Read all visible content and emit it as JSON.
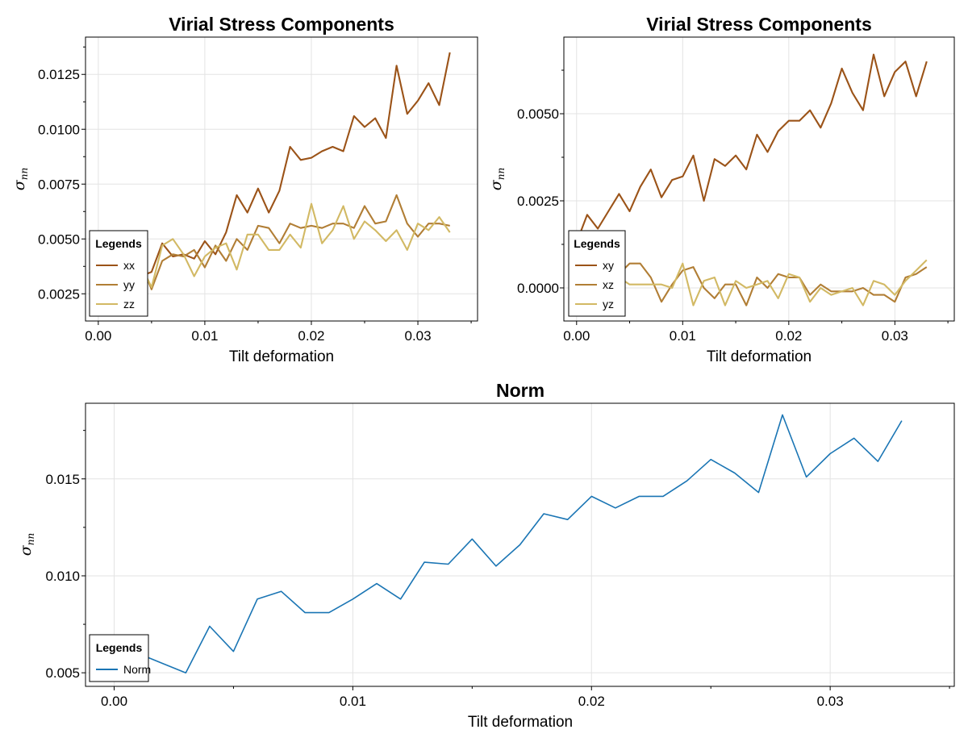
{
  "chart_data": [
    {
      "type": "line",
      "title": "Virial Stress Components",
      "xlabel": "Tilt deformation",
      "ylabel": "σ",
      "ylabel_sub": "nn",
      "xlim": [
        -0.0012,
        0.0356
      ],
      "ylim": [
        0.00126,
        0.0142
      ],
      "xticks": [
        0.0,
        0.01,
        0.02,
        0.03
      ],
      "xtick_labels": [
        "0.00",
        "0.01",
        "0.02",
        "0.03"
      ],
      "yticks": [
        0.0025,
        0.005,
        0.0075,
        0.01,
        0.0125
      ],
      "ytick_labels": [
        "0.0025",
        "0.0050",
        "0.0075",
        "0.0100",
        "0.0125"
      ],
      "grid": true,
      "legend": {
        "title": "Legends",
        "position": "bottom-left"
      },
      "x": [
        0.0,
        0.001,
        0.002,
        0.003,
        0.004,
        0.005,
        0.006,
        0.007,
        0.008,
        0.009,
        0.01,
        0.011,
        0.012,
        0.013,
        0.014,
        0.015,
        0.016,
        0.017,
        0.018,
        0.019,
        0.02,
        0.021,
        0.022,
        0.023,
        0.024,
        0.025,
        0.026,
        0.027,
        0.028,
        0.029,
        0.03,
        0.031,
        0.032,
        0.033
      ],
      "series": [
        {
          "name": "xx",
          "color": "#9b5318",
          "values": [
            0.0034,
            0.0034,
            0.0035,
            0.0037,
            0.0033,
            0.0035,
            0.0048,
            0.0042,
            0.0043,
            0.0041,
            0.0049,
            0.0043,
            0.0053,
            0.007,
            0.0062,
            0.0073,
            0.0062,
            0.0072,
            0.0092,
            0.0086,
            0.0087,
            0.009,
            0.0092,
            0.009,
            0.0106,
            0.0101,
            0.0105,
            0.0096,
            0.0129,
            0.0107,
            0.0113,
            0.0121,
            0.0111,
            0.0135
          ]
        },
        {
          "name": "yy",
          "color": "#b17e35",
          "values": [
            0.0036,
            0.0035,
            0.0034,
            0.0033,
            0.0039,
            0.0027,
            0.004,
            0.0043,
            0.0042,
            0.0045,
            0.0037,
            0.0047,
            0.004,
            0.005,
            0.0045,
            0.0056,
            0.0055,
            0.0048,
            0.0057,
            0.0055,
            0.0056,
            0.0055,
            0.0057,
            0.0057,
            0.0055,
            0.0065,
            0.0057,
            0.0058,
            0.007,
            0.0057,
            0.0051,
            0.0057,
            0.0057,
            0.0056
          ]
        },
        {
          "name": "zz",
          "color": "#d2b964",
          "values": [
            0.0035,
            0.0036,
            0.0037,
            0.0036,
            0.0038,
            0.0028,
            0.0047,
            0.005,
            0.0043,
            0.0033,
            0.0042,
            0.0046,
            0.0048,
            0.0036,
            0.0052,
            0.0052,
            0.0045,
            0.0045,
            0.0052,
            0.0046,
            0.0066,
            0.0048,
            0.0054,
            0.0065,
            0.005,
            0.0058,
            0.0054,
            0.0049,
            0.0054,
            0.0045,
            0.0057,
            0.0054,
            0.006,
            0.0053
          ]
        }
      ]
    },
    {
      "type": "line",
      "title": "Virial Stress Components",
      "xlabel": "Tilt deformation",
      "ylabel": "σ",
      "ylabel_sub": "nn",
      "xlim": [
        -0.0012,
        0.0356
      ],
      "ylim": [
        -0.00095,
        0.0072
      ],
      "xticks": [
        0.0,
        0.01,
        0.02,
        0.03
      ],
      "xtick_labels": [
        "0.00",
        "0.01",
        "0.02",
        "0.03"
      ],
      "yticks": [
        0.0,
        0.0025,
        0.005
      ],
      "ytick_labels": [
        "0.0000",
        "0.0025",
        "0.0050"
      ],
      "grid": true,
      "legend": {
        "title": "Legends",
        "position": "bottom-left"
      },
      "x": [
        0.0,
        0.001,
        0.002,
        0.003,
        0.004,
        0.005,
        0.006,
        0.007,
        0.008,
        0.009,
        0.01,
        0.011,
        0.012,
        0.013,
        0.014,
        0.015,
        0.016,
        0.017,
        0.018,
        0.019,
        0.02,
        0.021,
        0.022,
        0.023,
        0.024,
        0.025,
        0.026,
        0.027,
        0.028,
        0.029,
        0.03,
        0.031,
        0.032,
        0.033
      ],
      "series": [
        {
          "name": "xy",
          "color": "#9b5318",
          "values": [
            0.0013,
            0.0021,
            0.0017,
            0.0022,
            0.0027,
            0.0022,
            0.0029,
            0.0034,
            0.0026,
            0.0031,
            0.0032,
            0.0038,
            0.0025,
            0.0037,
            0.0035,
            0.0038,
            0.0034,
            0.0044,
            0.0039,
            0.0045,
            0.0048,
            0.0048,
            0.0051,
            0.0046,
            0.0053,
            0.0063,
            0.0056,
            0.0051,
            0.0067,
            0.0055,
            0.0062,
            0.0065,
            0.0055,
            0.0065
          ]
        },
        {
          "name": "xz",
          "color": "#b17e35",
          "values": [
            0.0004,
            0.0003,
            0.0002,
            0.0003,
            0.0004,
            0.0007,
            0.0007,
            0.0003,
            -0.0004,
            0.0001,
            0.0005,
            0.0006,
            0.0,
            -0.0003,
            0.0001,
            0.0001,
            -0.0005,
            0.0003,
            0.0,
            0.0004,
            0.0003,
            0.0003,
            -0.0002,
            0.0001,
            -0.0001,
            -0.0001,
            -0.0001,
            0.0,
            -0.0002,
            -0.0002,
            -0.0004,
            0.0003,
            0.0004,
            0.0006
          ]
        },
        {
          "name": "yz",
          "color": "#d2b964",
          "values": [
            0.0005,
            0.0004,
            0.0003,
            0.0004,
            0.0003,
            0.0001,
            0.0001,
            0.0001,
            0.0001,
            0.0,
            0.0007,
            -0.0005,
            0.0002,
            0.0003,
            -0.0005,
            0.0002,
            0.0,
            0.0001,
            0.0002,
            -0.0003,
            0.0004,
            0.0003,
            -0.0004,
            0.0,
            -0.0002,
            -0.0001,
            0.0,
            -0.0005,
            0.0002,
            0.0001,
            -0.0002,
            0.0002,
            0.0005,
            0.0008
          ]
        }
      ]
    },
    {
      "type": "line",
      "title": "Norm",
      "xlabel": "Tilt deformation",
      "ylabel": "σ",
      "ylabel_sub": "nn",
      "xlim": [
        -0.0012,
        0.0352
      ],
      "ylim": [
        0.0043,
        0.0189
      ],
      "xticks": [
        0.0,
        0.01,
        0.02,
        0.03
      ],
      "xtick_labels": [
        "0.00",
        "0.01",
        "0.02",
        "0.03"
      ],
      "yticks": [
        0.005,
        0.01,
        0.015
      ],
      "ytick_labels": [
        "0.005",
        "0.010",
        "0.015"
      ],
      "grid": true,
      "legend": {
        "title": "Legends",
        "position": "bottom-left"
      },
      "x": [
        0.0,
        0.001,
        0.002,
        0.003,
        0.004,
        0.005,
        0.006,
        0.007,
        0.008,
        0.009,
        0.01,
        0.011,
        0.012,
        0.013,
        0.014,
        0.015,
        0.016,
        0.017,
        0.018,
        0.019,
        0.02,
        0.021,
        0.022,
        0.023,
        0.024,
        0.025,
        0.026,
        0.027,
        0.028,
        0.029,
        0.03,
        0.031,
        0.032,
        0.033
      ],
      "series": [
        {
          "name": "Norm",
          "color": "#1a75b4",
          "values": [
            0.0063,
            0.006,
            0.0055,
            0.005,
            0.0074,
            0.0061,
            0.0088,
            0.0092,
            0.0081,
            0.0081,
            0.0088,
            0.0096,
            0.0088,
            0.0107,
            0.0106,
            0.0119,
            0.0105,
            0.0116,
            0.0132,
            0.0129,
            0.0141,
            0.0135,
            0.0141,
            0.0141,
            0.0149,
            0.016,
            0.0153,
            0.0143,
            0.0183,
            0.0151,
            0.0163,
            0.0171,
            0.0159,
            0.018
          ]
        }
      ]
    }
  ]
}
